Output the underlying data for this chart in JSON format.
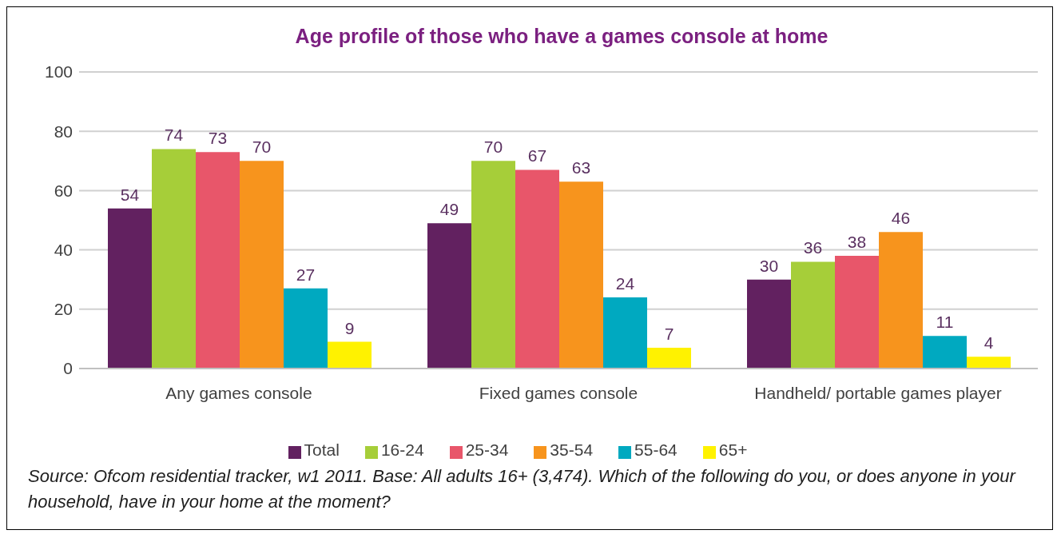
{
  "chart_data": {
    "type": "bar",
    "title": "Age profile of those who have a games console at home",
    "categories": [
      "Any games console",
      "Fixed games console",
      "Handheld/ portable games player"
    ],
    "series": [
      {
        "name": "Total",
        "color": "#622160",
        "values": [
          54,
          49,
          30
        ]
      },
      {
        "name": "16-24",
        "color": "#a6ce39",
        "values": [
          74,
          70,
          36
        ]
      },
      {
        "name": "25-34",
        "color": "#e8566a",
        "values": [
          73,
          67,
          38
        ]
      },
      {
        "name": "35-54",
        "color": "#f7941d",
        "values": [
          70,
          63,
          46
        ]
      },
      {
        "name": "55-64",
        "color": "#00a9c0",
        "values": [
          27,
          24,
          11
        ]
      },
      {
        "name": "65+",
        "color": "#fff200",
        "values": [
          9,
          7,
          4
        ]
      }
    ],
    "ylim": [
      0,
      100
    ],
    "yticks": [
      0,
      20,
      40,
      60,
      80,
      100
    ],
    "grid": "y",
    "legend": "bottom",
    "data_labels": true,
    "annotations": [
      "Source: Ofcom residential tracker, w1 2011. Base: All adults 16+ (3,474). Which of the following do you, or does anyone in your household, have in your home at the moment?"
    ]
  }
}
